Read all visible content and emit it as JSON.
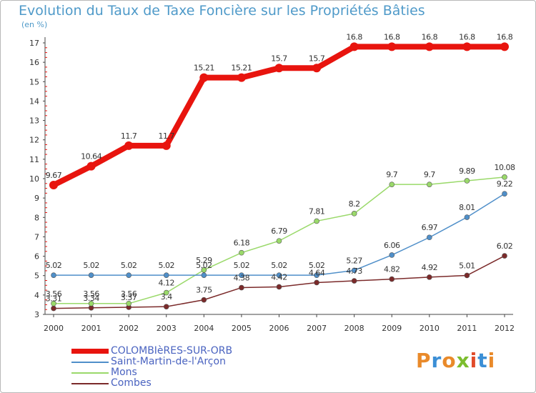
{
  "title": "Evolution du Taux de Taxe Foncière sur les Propriétés Bâties",
  "unit": "(en %)",
  "logo": {
    "text": "Proxiti",
    "letters": [
      "P",
      "r",
      "o",
      "x",
      "i",
      "t",
      "i"
    ],
    "colors": [
      "#e98a2a",
      "#3b8fd6",
      "#e98a2a",
      "#7cbd2e",
      "#e14b2a",
      "#3b8fd6",
      "#e98a2a"
    ]
  },
  "chart_data": {
    "type": "line",
    "x": [
      "2000",
      "2001",
      "2002",
      "2003",
      "2004",
      "2005",
      "2006",
      "2007",
      "2008",
      "2009",
      "2010",
      "2011",
      "2012"
    ],
    "ylim": [
      3,
      17
    ],
    "yticks": [
      "3",
      "4",
      "5",
      "6",
      "7",
      "8",
      "9",
      "10",
      "11",
      "12",
      "13",
      "14",
      "15",
      "16",
      "17"
    ],
    "grid": false,
    "legend_position": "bottom-left",
    "series": [
      {
        "name": "COLOMBIèRES-SUR-ORB",
        "color": "#e8140e",
        "values": [
          9.67,
          10.64,
          11.7,
          11.7,
          15.21,
          15.21,
          15.7,
          15.7,
          16.8,
          16.8,
          16.8,
          16.8,
          16.8
        ],
        "labels": [
          "9.67",
          "10.64",
          "11.7",
          "11.7",
          "15.21",
          "15.21",
          "15.7",
          "15.7",
          "16.8",
          "16.8",
          "16.8",
          "16.8",
          "16.8"
        ]
      },
      {
        "name": "Saint-Martin-de-l'Arçon",
        "color": "#4f8fc9",
        "values": [
          5.02,
          5.02,
          5.02,
          5.02,
          5.02,
          5.02,
          5.02,
          5.02,
          5.27,
          6.06,
          6.97,
          8.01,
          9.22
        ],
        "labels": [
          "5.02",
          "5.02",
          "5.02",
          "5.02",
          "5.02",
          "5.02",
          "5.02",
          "5.02",
          "5.27",
          "6.06",
          "6.97",
          "8.01",
          "9.22"
        ]
      },
      {
        "name": "Mons",
        "color": "#9ad96a",
        "values": [
          3.56,
          3.56,
          3.56,
          4.12,
          5.29,
          6.18,
          6.79,
          7.81,
          8.2,
          9.7,
          9.7,
          9.89,
          10.08
        ],
        "labels": [
          "3.56",
          "3.56",
          "3.56",
          "4.12",
          "5.29",
          "6.18",
          "6.79",
          "7.81",
          "8.2",
          "9.7",
          "9.7",
          "9.89",
          "10.08"
        ]
      },
      {
        "name": "Combes",
        "color": "#7b2a2a",
        "values": [
          3.31,
          3.34,
          3.37,
          3.4,
          3.75,
          4.38,
          4.42,
          4.64,
          4.73,
          4.82,
          4.92,
          5.01,
          6.02
        ],
        "labels": [
          "3.31",
          "3.34",
          "3.37",
          "3.4",
          "3.75",
          "4.38",
          "4.42",
          "4.64",
          "4.73",
          "4.82",
          "4.92",
          "5.01",
          "6.02"
        ]
      }
    ]
  }
}
